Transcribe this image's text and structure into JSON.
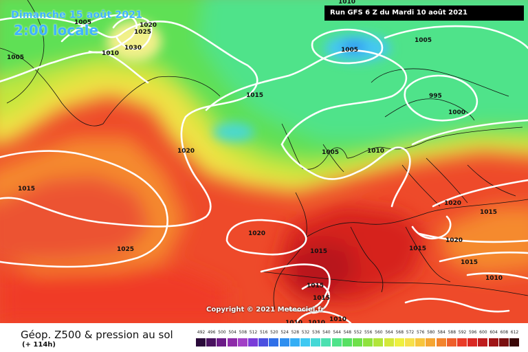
{
  "header": {
    "date_title": "Dimanche 15 août 2021",
    "time_title": "2:00 locale",
    "run_info": "Run GFS 6 Z du Mardi 10 août 2021"
  },
  "map": {
    "copyright": "Copyright © 2021 Meteociel.fr",
    "isobar_color": "#ffffff",
    "isobar_labels": [
      {
        "text": "1005",
        "id": "a"
      },
      {
        "text": "1005",
        "id": "b"
      },
      {
        "text": "1025",
        "id": "c"
      },
      {
        "text": "1020",
        "id": "d"
      },
      {
        "text": "1030",
        "id": "e"
      },
      {
        "text": "1010",
        "id": "f"
      },
      {
        "text": "1005",
        "id": "g"
      },
      {
        "text": "1015",
        "id": "h"
      },
      {
        "text": "1010",
        "id": "i"
      },
      {
        "text": "1005",
        "id": "j"
      },
      {
        "text": "995",
        "id": "k"
      },
      {
        "text": "1000",
        "id": "l"
      },
      {
        "text": "1020",
        "id": "m"
      },
      {
        "text": "1005",
        "id": "n"
      },
      {
        "text": "1010",
        "id": "o"
      },
      {
        "text": "1015",
        "id": "p"
      },
      {
        "text": "1020",
        "id": "q"
      },
      {
        "text": "1020",
        "id": "r"
      },
      {
        "text": "1025",
        "id": "s"
      },
      {
        "text": "1015",
        "id": "t"
      },
      {
        "text": "1015",
        "id": "u"
      },
      {
        "text": "1020",
        "id": "v"
      },
      {
        "text": "1015",
        "id": "w"
      },
      {
        "text": "1015",
        "id": "x"
      },
      {
        "text": "1015",
        "id": "y"
      },
      {
        "text": "1010",
        "id": "z"
      },
      {
        "text": "1010",
        "id": "aa"
      },
      {
        "text": "1010",
        "id": "ab"
      },
      {
        "text": "1015",
        "id": "ac"
      },
      {
        "text": "1010",
        "id": "ad"
      }
    ]
  },
  "legend": {
    "title": "Géop. Z500 & pression au sol",
    "lead_time": "(+ 114h)",
    "scale": [
      {
        "label": "492",
        "color": "#2a0a3a"
      },
      {
        "label": "496",
        "color": "#48115e"
      },
      {
        "label": "500",
        "color": "#6a1a86"
      },
      {
        "label": "504",
        "color": "#8d2aa8"
      },
      {
        "label": "508",
        "color": "#a23fc6"
      },
      {
        "label": "512",
        "color": "#7a3bd8"
      },
      {
        "label": "516",
        "color": "#4b4fe0"
      },
      {
        "label": "520",
        "color": "#2f6fe8"
      },
      {
        "label": "524",
        "color": "#2f8ff0"
      },
      {
        "label": "528",
        "color": "#34aef5"
      },
      {
        "label": "532",
        "color": "#3ec9f2"
      },
      {
        "label": "536",
        "color": "#45d8d6"
      },
      {
        "label": "540",
        "color": "#4be0b0"
      },
      {
        "label": "544",
        "color": "#4fe38a"
      },
      {
        "label": "548",
        "color": "#56e062"
      },
      {
        "label": "552",
        "color": "#6ee04a"
      },
      {
        "label": "556",
        "color": "#8fe23d"
      },
      {
        "label": "560",
        "color": "#b1e53a"
      },
      {
        "label": "564",
        "color": "#d3e83a"
      },
      {
        "label": "568",
        "color": "#eef03f"
      },
      {
        "label": "572",
        "color": "#f6e04a"
      },
      {
        "label": "576",
        "color": "#f7c53c"
      },
      {
        "label": "580",
        "color": "#f5a532"
      },
      {
        "label": "584",
        "color": "#f2832c"
      },
      {
        "label": "588",
        "color": "#ee5e2a"
      },
      {
        "label": "592",
        "color": "#e93b27"
      },
      {
        "label": "596",
        "color": "#d92722"
      },
      {
        "label": "600",
        "color": "#be1b1c"
      },
      {
        "label": "604",
        "color": "#9f1416"
      },
      {
        "label": "608",
        "color": "#7a0f10"
      },
      {
        "label": "612",
        "color": "#3a0808"
      }
    ]
  }
}
